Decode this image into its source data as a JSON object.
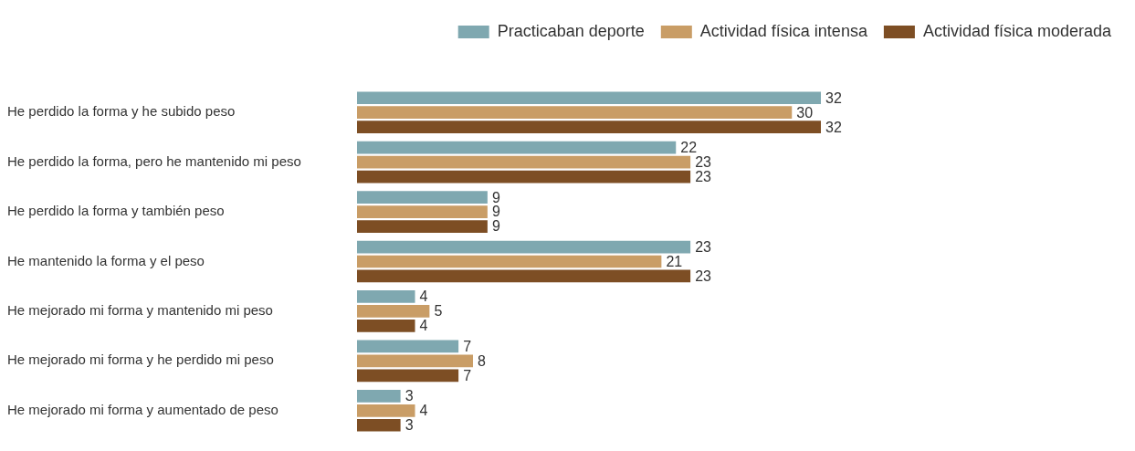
{
  "chart_data": {
    "type": "bar",
    "orientation": "horizontal",
    "data_labels": true,
    "legend": "top right",
    "categories": [
      "He perdido la forma y he subido peso",
      "He perdido la forma, pero he mantenido mi peso",
      "He perdido la forma y también peso",
      "He mantenido la forma y el peso",
      "He mejorado mi forma y mantenido mi peso",
      "He mejorado mi forma y he perdido mi peso",
      "He mejorado mi forma y aumentado de peso"
    ],
    "series": [
      {
        "name": "Practicaban deporte",
        "color": "#7fa8b0",
        "values": [
          32,
          22,
          9,
          23,
          4,
          7,
          3
        ]
      },
      {
        "name": "Actividad física intensa",
        "color": "#c99d66",
        "values": [
          30,
          23,
          9,
          21,
          5,
          8,
          4
        ]
      },
      {
        "name": "Actividad física moderada",
        "color": "#7d4e24",
        "values": [
          32,
          23,
          9,
          23,
          4,
          7,
          3
        ]
      }
    ]
  }
}
